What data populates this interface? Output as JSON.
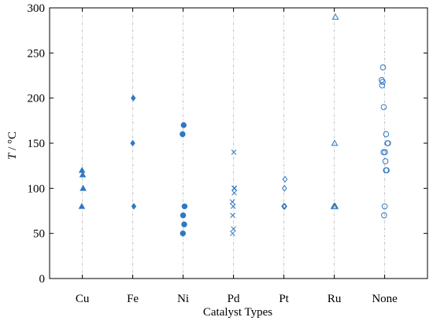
{
  "chart_data": {
    "type": "scatter",
    "title": "",
    "xlabel": "Catalyst Types",
    "ylabel": "T / °C",
    "categories": [
      "Cu",
      "Fe",
      "Ni",
      "Pd",
      "Pt",
      "Ru",
      "None"
    ],
    "ylim": [
      0,
      300
    ],
    "yticks": [
      0,
      50,
      100,
      150,
      200,
      250,
      300
    ],
    "grid": "vertical dashed at categories",
    "legend": "none",
    "color": "#2f78c4",
    "groups": [
      {
        "category": "Cu",
        "marker": "triangle-filled",
        "points": [
          {
            "x": -0.03,
            "y": 120
          },
          {
            "x": 0.03,
            "y": 115
          },
          {
            "x": 0.07,
            "y": 100
          },
          {
            "x": -0.05,
            "y": 80
          }
        ]
      },
      {
        "category": "Fe",
        "marker": "diamond-filled",
        "points": [
          {
            "x": 0.05,
            "y": 200
          },
          {
            "x": 0.0,
            "y": 150
          },
          {
            "x": 0.1,
            "y": 80
          }
        ]
      },
      {
        "category": "Ni",
        "marker": "circle-filled",
        "points": [
          {
            "x": 0.05,
            "y": 170
          },
          {
            "x": -0.05,
            "y": 160
          },
          {
            "x": 0.13,
            "y": 80
          },
          {
            "x": 0.0,
            "y": 70
          },
          {
            "x": 0.1,
            "y": 60
          },
          {
            "x": -0.02,
            "y": 50
          }
        ]
      },
      {
        "category": "Pd",
        "marker": "x",
        "points": [
          {
            "x": 0.03,
            "y": 140
          },
          {
            "x": 0.05,
            "y": 100
          },
          {
            "x": 0.1,
            "y": 100
          },
          {
            "x": 0.07,
            "y": 95
          },
          {
            "x": -0.1,
            "y": 85
          },
          {
            "x": -0.03,
            "y": 80
          },
          {
            "x": -0.07,
            "y": 70
          },
          {
            "x": 0.0,
            "y": 55
          },
          {
            "x": -0.08,
            "y": 50
          }
        ]
      },
      {
        "category": "Pt",
        "marker": "diamond-open",
        "points": [
          {
            "x": 0.1,
            "y": 110
          },
          {
            "x": 0.05,
            "y": 100
          },
          {
            "x": 0.0,
            "y": 80
          },
          {
            "x": 0.07,
            "y": 80
          }
        ]
      },
      {
        "category": "Ru",
        "marker": "triangle-open",
        "points": [
          {
            "x": 0.1,
            "y": 290
          },
          {
            "x": 0.03,
            "y": 150
          },
          {
            "x": -0.03,
            "y": 80
          },
          {
            "x": 0.03,
            "y": 80
          },
          {
            "x": 0.08,
            "y": 80
          }
        ]
      },
      {
        "category": "None",
        "marker": "circle-open",
        "points": [
          {
            "x": -0.15,
            "y": 234
          },
          {
            "x": -0.27,
            "y": 220
          },
          {
            "x": -0.18,
            "y": 218
          },
          {
            "x": -0.23,
            "y": 214
          },
          {
            "x": -0.08,
            "y": 190
          },
          {
            "x": 0.13,
            "y": 160
          },
          {
            "x": 0.25,
            "y": 150
          },
          {
            "x": 0.3,
            "y": 150
          },
          {
            "x": -0.1,
            "y": 140
          },
          {
            "x": 0.03,
            "y": 140
          },
          {
            "x": 0.07,
            "y": 130
          },
          {
            "x": 0.12,
            "y": 120
          },
          {
            "x": 0.18,
            "y": 120
          },
          {
            "x": 0.0,
            "y": 80
          },
          {
            "x": -0.05,
            "y": 70
          }
        ]
      }
    ]
  }
}
